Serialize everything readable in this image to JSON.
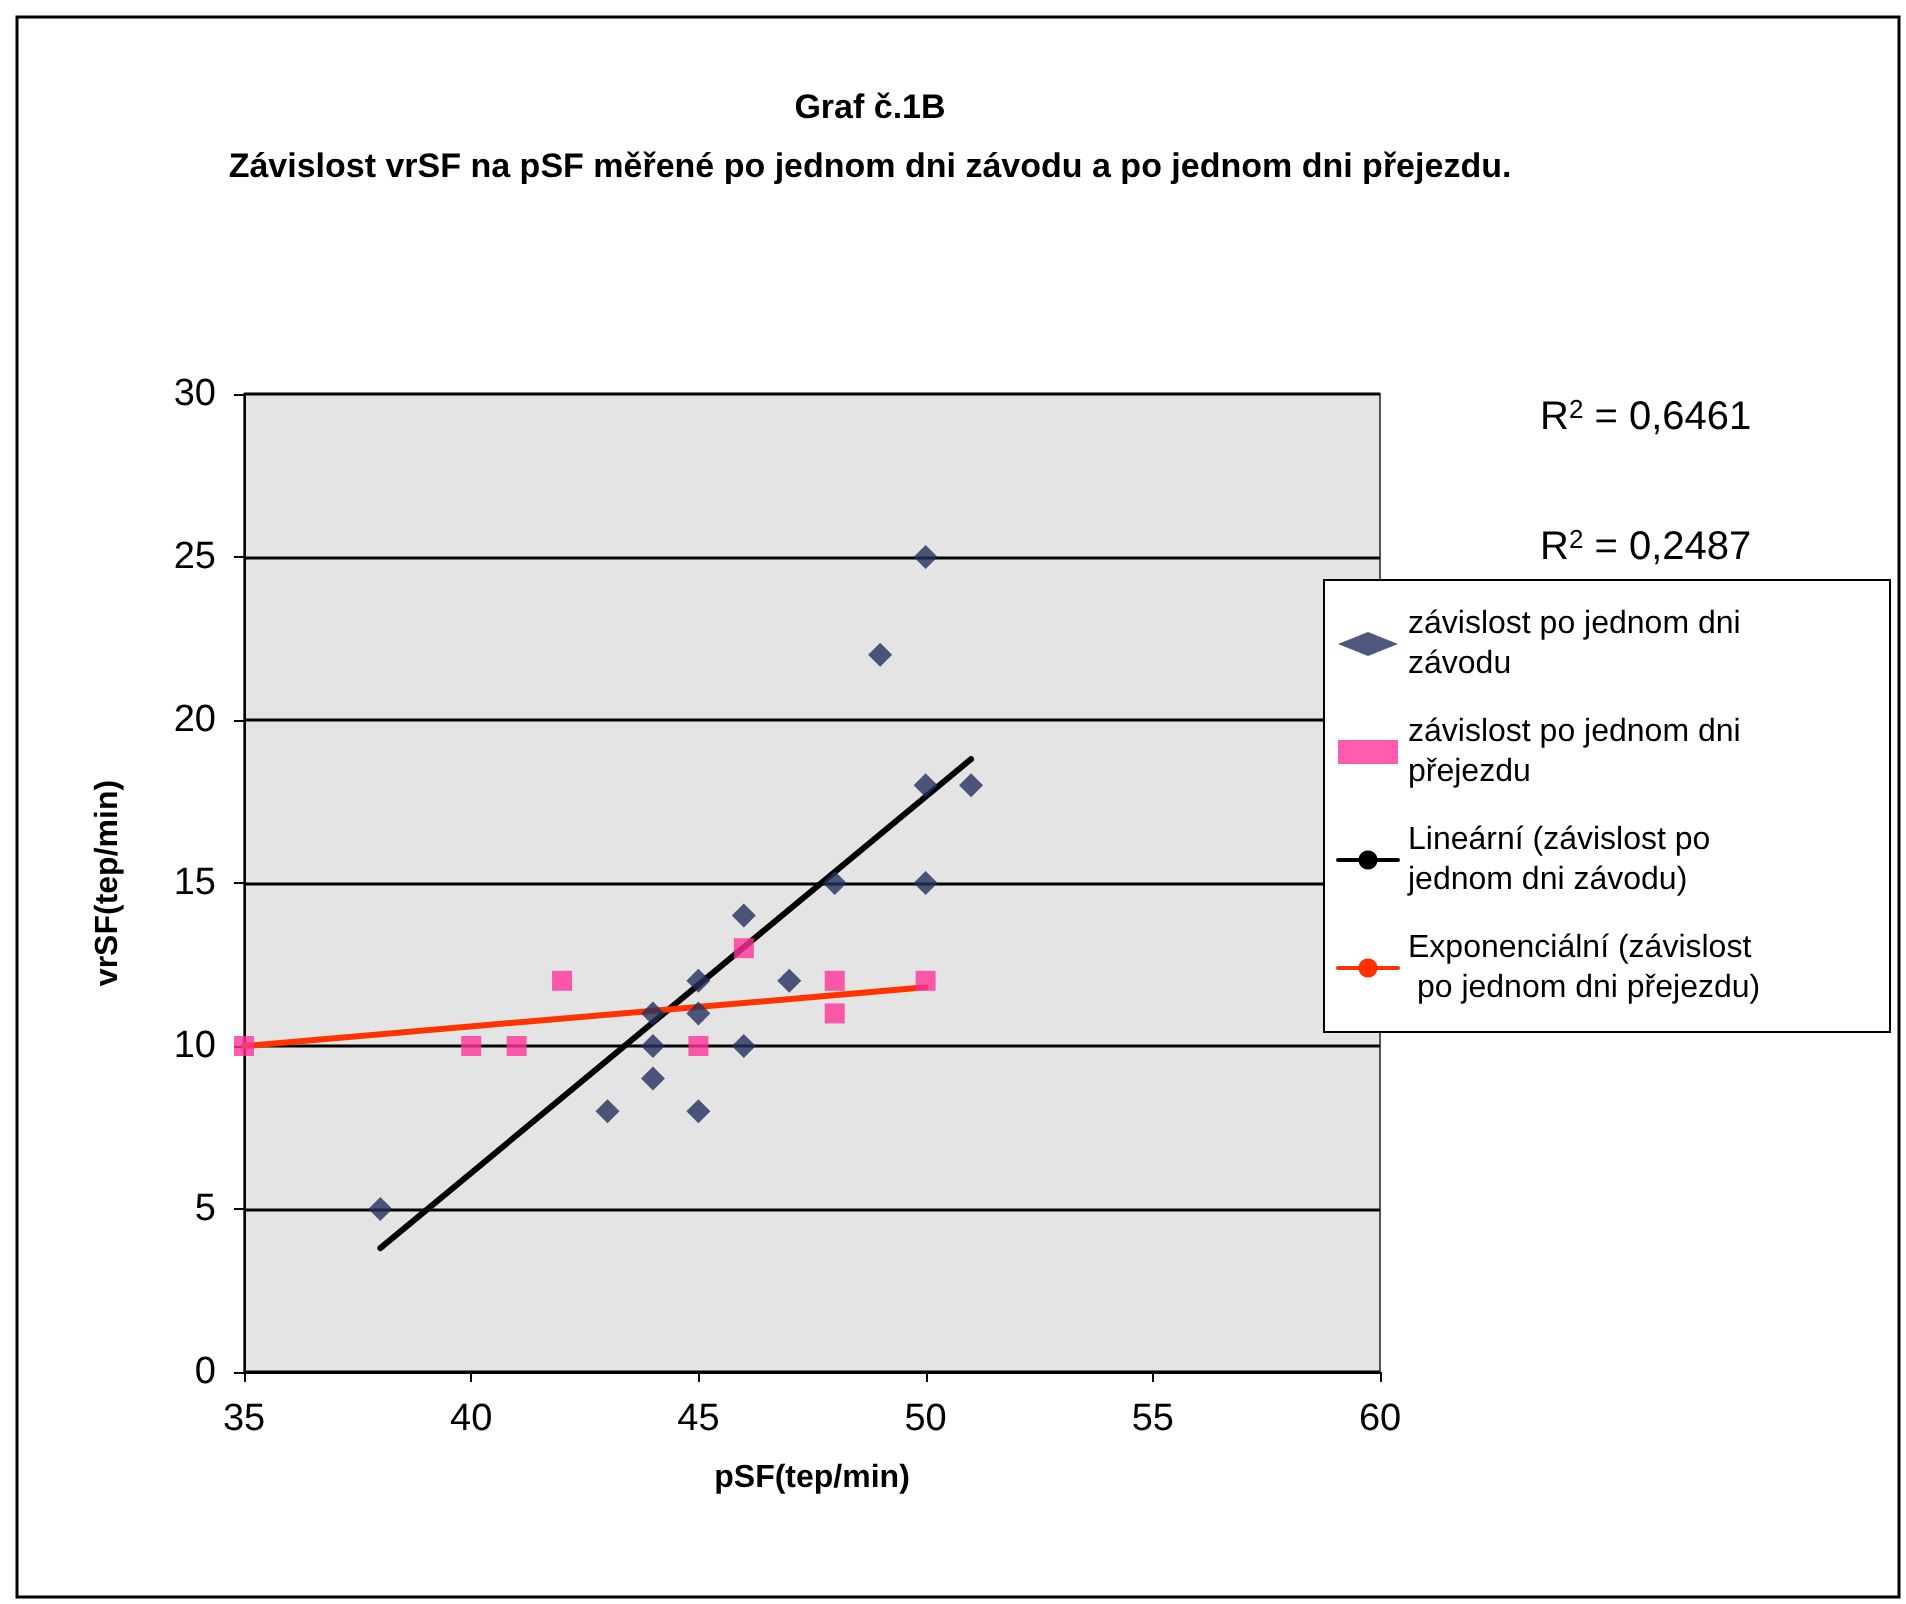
{
  "chart_data": {
    "type": "scatter",
    "title": "Graf č.1B",
    "subtitle": "Závislost vrSF na pSF měřené po jednom dni závodu a po jednom dni přejezdu.",
    "xlabel": "pSF(tep/min)",
    "ylabel": "vrSF(tep/min)",
    "xlim": [
      35,
      60
    ],
    "xticks": [
      35,
      40,
      45,
      50,
      55,
      60
    ],
    "ylim": [
      0,
      30
    ],
    "yticks": [
      0,
      5,
      10,
      15,
      20,
      25,
      30
    ],
    "grid": "y",
    "legend": "right",
    "annotations": [
      "R$^{2}$ = 0,6461",
      "R$^{2}$ = 0,2487"
    ],
    "series": [
      {
        "name": "závislost po jednom dni závodu",
        "color": "#23305e",
        "marker": "diamond",
        "x": [
          38,
          43,
          44,
          44,
          44,
          45,
          45,
          45,
          46,
          46,
          47,
          48,
          49,
          50,
          50,
          50,
          51
        ],
        "values": [
          5,
          8,
          11,
          10,
          9,
          12,
          11,
          8,
          14,
          10,
          12,
          15,
          22,
          25,
          18,
          15,
          18
        ]
      },
      {
        "name": "závislost po jednom dni přejezdu",
        "color": "#ff3399",
        "marker": "square",
        "x": [
          35,
          40,
          41,
          42,
          45,
          46,
          48,
          48,
          50
        ],
        "values": [
          10,
          10,
          10,
          12,
          10,
          13,
          12,
          11,
          12
        ]
      },
      {
        "name": "Lineární (závislost po jednom dni závodu)",
        "type": "line",
        "color": "#000000",
        "marker": "none",
        "x": [
          38,
          51
        ],
        "values": [
          3.8,
          18.8
        ]
      },
      {
        "name": "Exponenciální (závislost po jednom dni přejezdu)",
        "type": "line",
        "color": "#ff3300",
        "marker": "none",
        "x": [
          35,
          50
        ],
        "values": [
          10,
          11.8
        ]
      }
    ]
  }
}
